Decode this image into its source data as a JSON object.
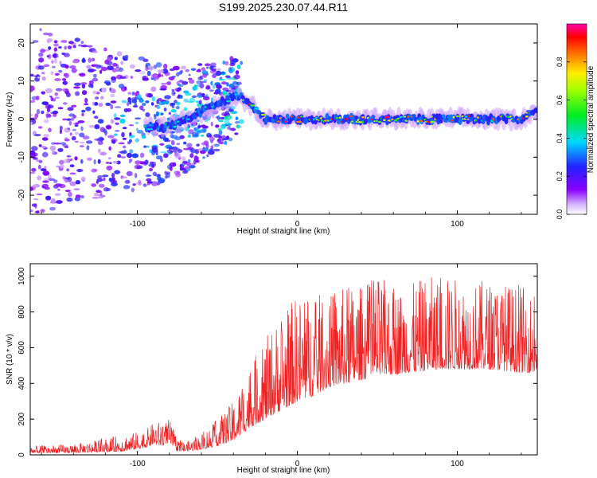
{
  "title": "S199.2025.230.07.44.R11",
  "colors": {
    "snr_line": "#ee2222",
    "frame": "#000000",
    "background": "#ffffff"
  },
  "chart_data": [
    {
      "type": "heatmap",
      "title": "S199.2025.230.07.44.R11",
      "xlabel": "Height of straight line (km)",
      "ylabel": "Frequency (Hz)",
      "xlim": [
        -167,
        150
      ],
      "ylim": [
        -25,
        25
      ],
      "xticks": [
        -100,
        0,
        100
      ],
      "xtick_labels": [
        "-100",
        "0",
        "100"
      ],
      "yticks": [
        -20,
        -10,
        0,
        10,
        20
      ],
      "ytick_labels": [
        "-20",
        "-10",
        "0",
        "10",
        "20"
      ],
      "grid": false,
      "colorbar": {
        "label": "Normalized spectral amplitude",
        "range": [
          0,
          1
        ],
        "ticks": [
          0.0,
          0.2,
          0.4,
          0.6,
          0.8
        ],
        "tick_labels": [
          "0.0",
          "0.2",
          "0.4",
          "0.6",
          "0.8"
        ],
        "colormap": "rainbow (white-violet-blue-cyan-green-yellow-red-magenta)"
      },
      "ridge": {
        "description": "dominant spectral ridge (frequency vs height)",
        "x": [
          -80,
          -70,
          -60,
          -50,
          -40,
          -35,
          -30,
          -20,
          -10,
          0,
          10,
          20,
          30,
          40,
          50,
          60,
          70,
          80,
          90,
          100,
          110,
          120,
          130,
          140,
          148
        ],
        "y": [
          -2,
          0,
          2,
          4,
          6,
          6,
          4,
          0,
          0,
          0,
          0,
          0,
          0,
          0,
          0,
          0,
          0,
          0,
          0,
          0,
          0,
          0,
          0,
          0,
          2
        ]
      },
      "scatter_region": {
        "x_from": -167,
        "x_to": -35,
        "y_from": -25,
        "y_to": 25
      }
    },
    {
      "type": "line",
      "xlabel": "Height of straight line (km)",
      "ylabel": "SNR (10 * v/v)",
      "xlim": [
        -167,
        150
      ],
      "ylim": [
        0,
        1070
      ],
      "xticks": [
        -100,
        0,
        100
      ],
      "xtick_labels": [
        "-100",
        "0",
        "100"
      ],
      "yticks": [
        0,
        200,
        400,
        600,
        800,
        1000
      ],
      "ytick_labels": [
        "0",
        "200",
        "400",
        "600",
        "800",
        "1000"
      ],
      "grid": false,
      "series": [
        {
          "name": "SNR",
          "color": "#ee2222",
          "envelope_x": [
            -167,
            -140,
            -110,
            -95,
            -90,
            -85,
            -80,
            -75,
            -70,
            -60,
            -50,
            -40,
            -30,
            -20,
            -10,
            0,
            10,
            20,
            30,
            40,
            50,
            60,
            70,
            80,
            90,
            100,
            110,
            120,
            130,
            140,
            150
          ],
          "envelope_baseline": [
            10,
            12,
            20,
            40,
            60,
            50,
            70,
            20,
            20,
            30,
            50,
            80,
            150,
            200,
            250,
            300,
            330,
            380,
            400,
            420,
            440,
            450,
            460,
            470,
            480,
            480,
            480,
            480,
            470,
            460,
            460
          ],
          "envelope_peak": [
            50,
            60,
            110,
            140,
            180,
            190,
            200,
            90,
            70,
            120,
            200,
            300,
            500,
            650,
            800,
            900,
            900,
            900,
            950,
            950,
            1000,
            950,
            950,
            1000,
            1000,
            1000,
            980,
            980,
            970,
            950,
            900
          ]
        }
      ]
    }
  ]
}
